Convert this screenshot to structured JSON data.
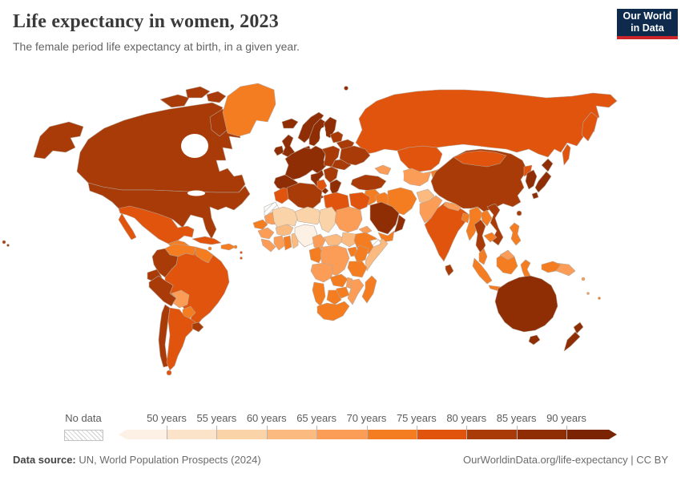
{
  "header": {
    "title": "Life expectancy in women, 2023",
    "subtitle": "The female period life expectancy at birth, in a given year.",
    "logo": {
      "line1": "Our World",
      "line2": "in Data",
      "bg_color": "#0e2a4d",
      "accent_color": "#cc2529"
    }
  },
  "legend": {
    "nodata_label": "No data",
    "tick_labels": [
      "50 years",
      "55 years",
      "60 years",
      "65 years",
      "70 years",
      "75 years",
      "80 years",
      "85 years",
      "90 years"
    ],
    "bin_order": [
      "b1",
      "b2",
      "b3",
      "b4",
      "b5",
      "b6",
      "b7",
      "b8",
      "b9",
      "b10"
    ]
  },
  "footer": {
    "source_label": "Data source:",
    "source_text": " UN, World Population Prospects (2024)",
    "right_text": "OurWorldinData.org/life-expectancy | CC BY"
  },
  "chart_data": {
    "type": "choropleth-map",
    "title": "Life expectancy in women, 2023",
    "unit": "years",
    "bin_edges": [
      50,
      55,
      60,
      65,
      70,
      75,
      80,
      85,
      90
    ],
    "bins": {
      "b1": {
        "label": "under 50 years",
        "color": "#fdf0e4"
      },
      "b2": {
        "label": "50-55 years",
        "color": "#fbe3ca"
      },
      "b3": {
        "label": "55-60 years",
        "color": "#fbd3a8"
      },
      "b4": {
        "label": "60-65 years",
        "color": "#fbbb80"
      },
      "b5": {
        "label": "65-70 years",
        "color": "#fb9d57"
      },
      "b6": {
        "label": "70-75 years",
        "color": "#f57d21"
      },
      "b7": {
        "label": "75-80 years",
        "color": "#e1540d"
      },
      "b8": {
        "label": "80-85 years",
        "color": "#a83b08"
      },
      "b9": {
        "label": "85-90 years",
        "color": "#8f2d04"
      },
      "b10": {
        "label": "over 90 years",
        "color": "#7a2403"
      },
      "nodata": {
        "label": "No data",
        "color": "hatch"
      }
    },
    "regions": {
      "alaska": "b8",
      "canada": "b8",
      "arctic1": "b8",
      "arctic2": "b8",
      "arctic3": "b8",
      "baffin": "b8",
      "greenland": "b6",
      "iceland": "b9",
      "usa": "b8",
      "hawaii": "b8",
      "mexico": "b7",
      "centralamerica": "b6",
      "panama": "b7",
      "cuba": "b7",
      "hispaniola": "b6",
      "jamaica": "b6",
      "puertorico": "b6",
      "lesserantilles": "b7",
      "venezuela": "b6",
      "guianas": "b6",
      "colombia": "b8",
      "ecuador": "b8",
      "peru": "b8",
      "brazil": "b7",
      "bolivia": "b5",
      "paraguay": "b6",
      "chile": "b8",
      "argentina": "b7",
      "uruguay": "b8",
      "tierradelfuego": "b7",
      "uk": "b9",
      "ireland": "b9",
      "norway": "b9",
      "svalbard": "b9",
      "sweden": "b9",
      "finland": "b9",
      "denmark": "b9",
      "westerneurope": "b9",
      "iberia": "b9",
      "italy": "b9",
      "centraleurope": "b8",
      "balkans": "b8",
      "greece": "b9",
      "romania": "b8",
      "baltics": "b8",
      "belarus": "b8",
      "ukraine": "b8",
      "russia": "b7",
      "kamchatka": "b7",
      "sakhalin": "b7",
      "kazakhstan": "b7",
      "centralasia": "b5",
      "kyrgyztajik": "b6",
      "caucasus": "b5",
      "turkey": "b8",
      "levant": "b6",
      "iraq": "b6",
      "iran": "b6",
      "saudiarabia": "b9",
      "yemen": "b6",
      "oman": "b9",
      "afghanistan": "b4",
      "pakistan": "b5",
      "india": "b7",
      "srilanka": "b8",
      "nepal": "b5",
      "bangladesh": "b6",
      "myanmar": "b6",
      "thailand": "b8",
      "laos": "b6",
      "cambodia": "b6",
      "vietnam": "b8",
      "malaysia": "b6",
      "sumatra": "b6",
      "java": "b6",
      "borneo": "b6",
      "borneomy": "b5",
      "sulawesi": "b6",
      "philippines": "b6",
      "newguinea": "b6",
      "papuanewguinea": "b5",
      "solomon": "b5",
      "vanuatu": "b5",
      "fiji": "b6",
      "taiwan": "b8",
      "china": "b8",
      "mongolia": "b7",
      "northkorea": "b7",
      "southkorea": "b9",
      "japan": "b9",
      "morocco": "b7",
      "westernsahara": "nodata",
      "mauritania": "b5",
      "senegal": "b6",
      "guinea": "b5",
      "sierraleone": "b5",
      "ivorycoast": "b5",
      "ghana": "b6",
      "togobenin": "b4",
      "burkina": "b4",
      "mali": "b3",
      "niger": "b3",
      "nigeria": "b1",
      "chad": "b3",
      "sudan": "b5",
      "eritrea": "b5",
      "ethiopia": "b6",
      "somalia": "b4",
      "somaliland": "nodata",
      "cameroon": "b5",
      "centralafricanrep": "b4",
      "southsudan": "b4",
      "gaboncongo": "b6",
      "drc": "b5",
      "uganda": "b6",
      "kenya": "b6",
      "tanzania": "b6",
      "angola": "b5",
      "zambia": "b6",
      "malawi": "b5",
      "mozambique": "b5",
      "zimbabwe": "b6",
      "botswana": "b6",
      "namibia": "b6",
      "southafrica": "b6",
      "madagascar": "b6",
      "algeria": "b8",
      "tunisia": "b7",
      "libya": "b7",
      "egypt": "b7",
      "australia": "b9",
      "tasmania": "b9",
      "newzealand": "b9"
    }
  }
}
